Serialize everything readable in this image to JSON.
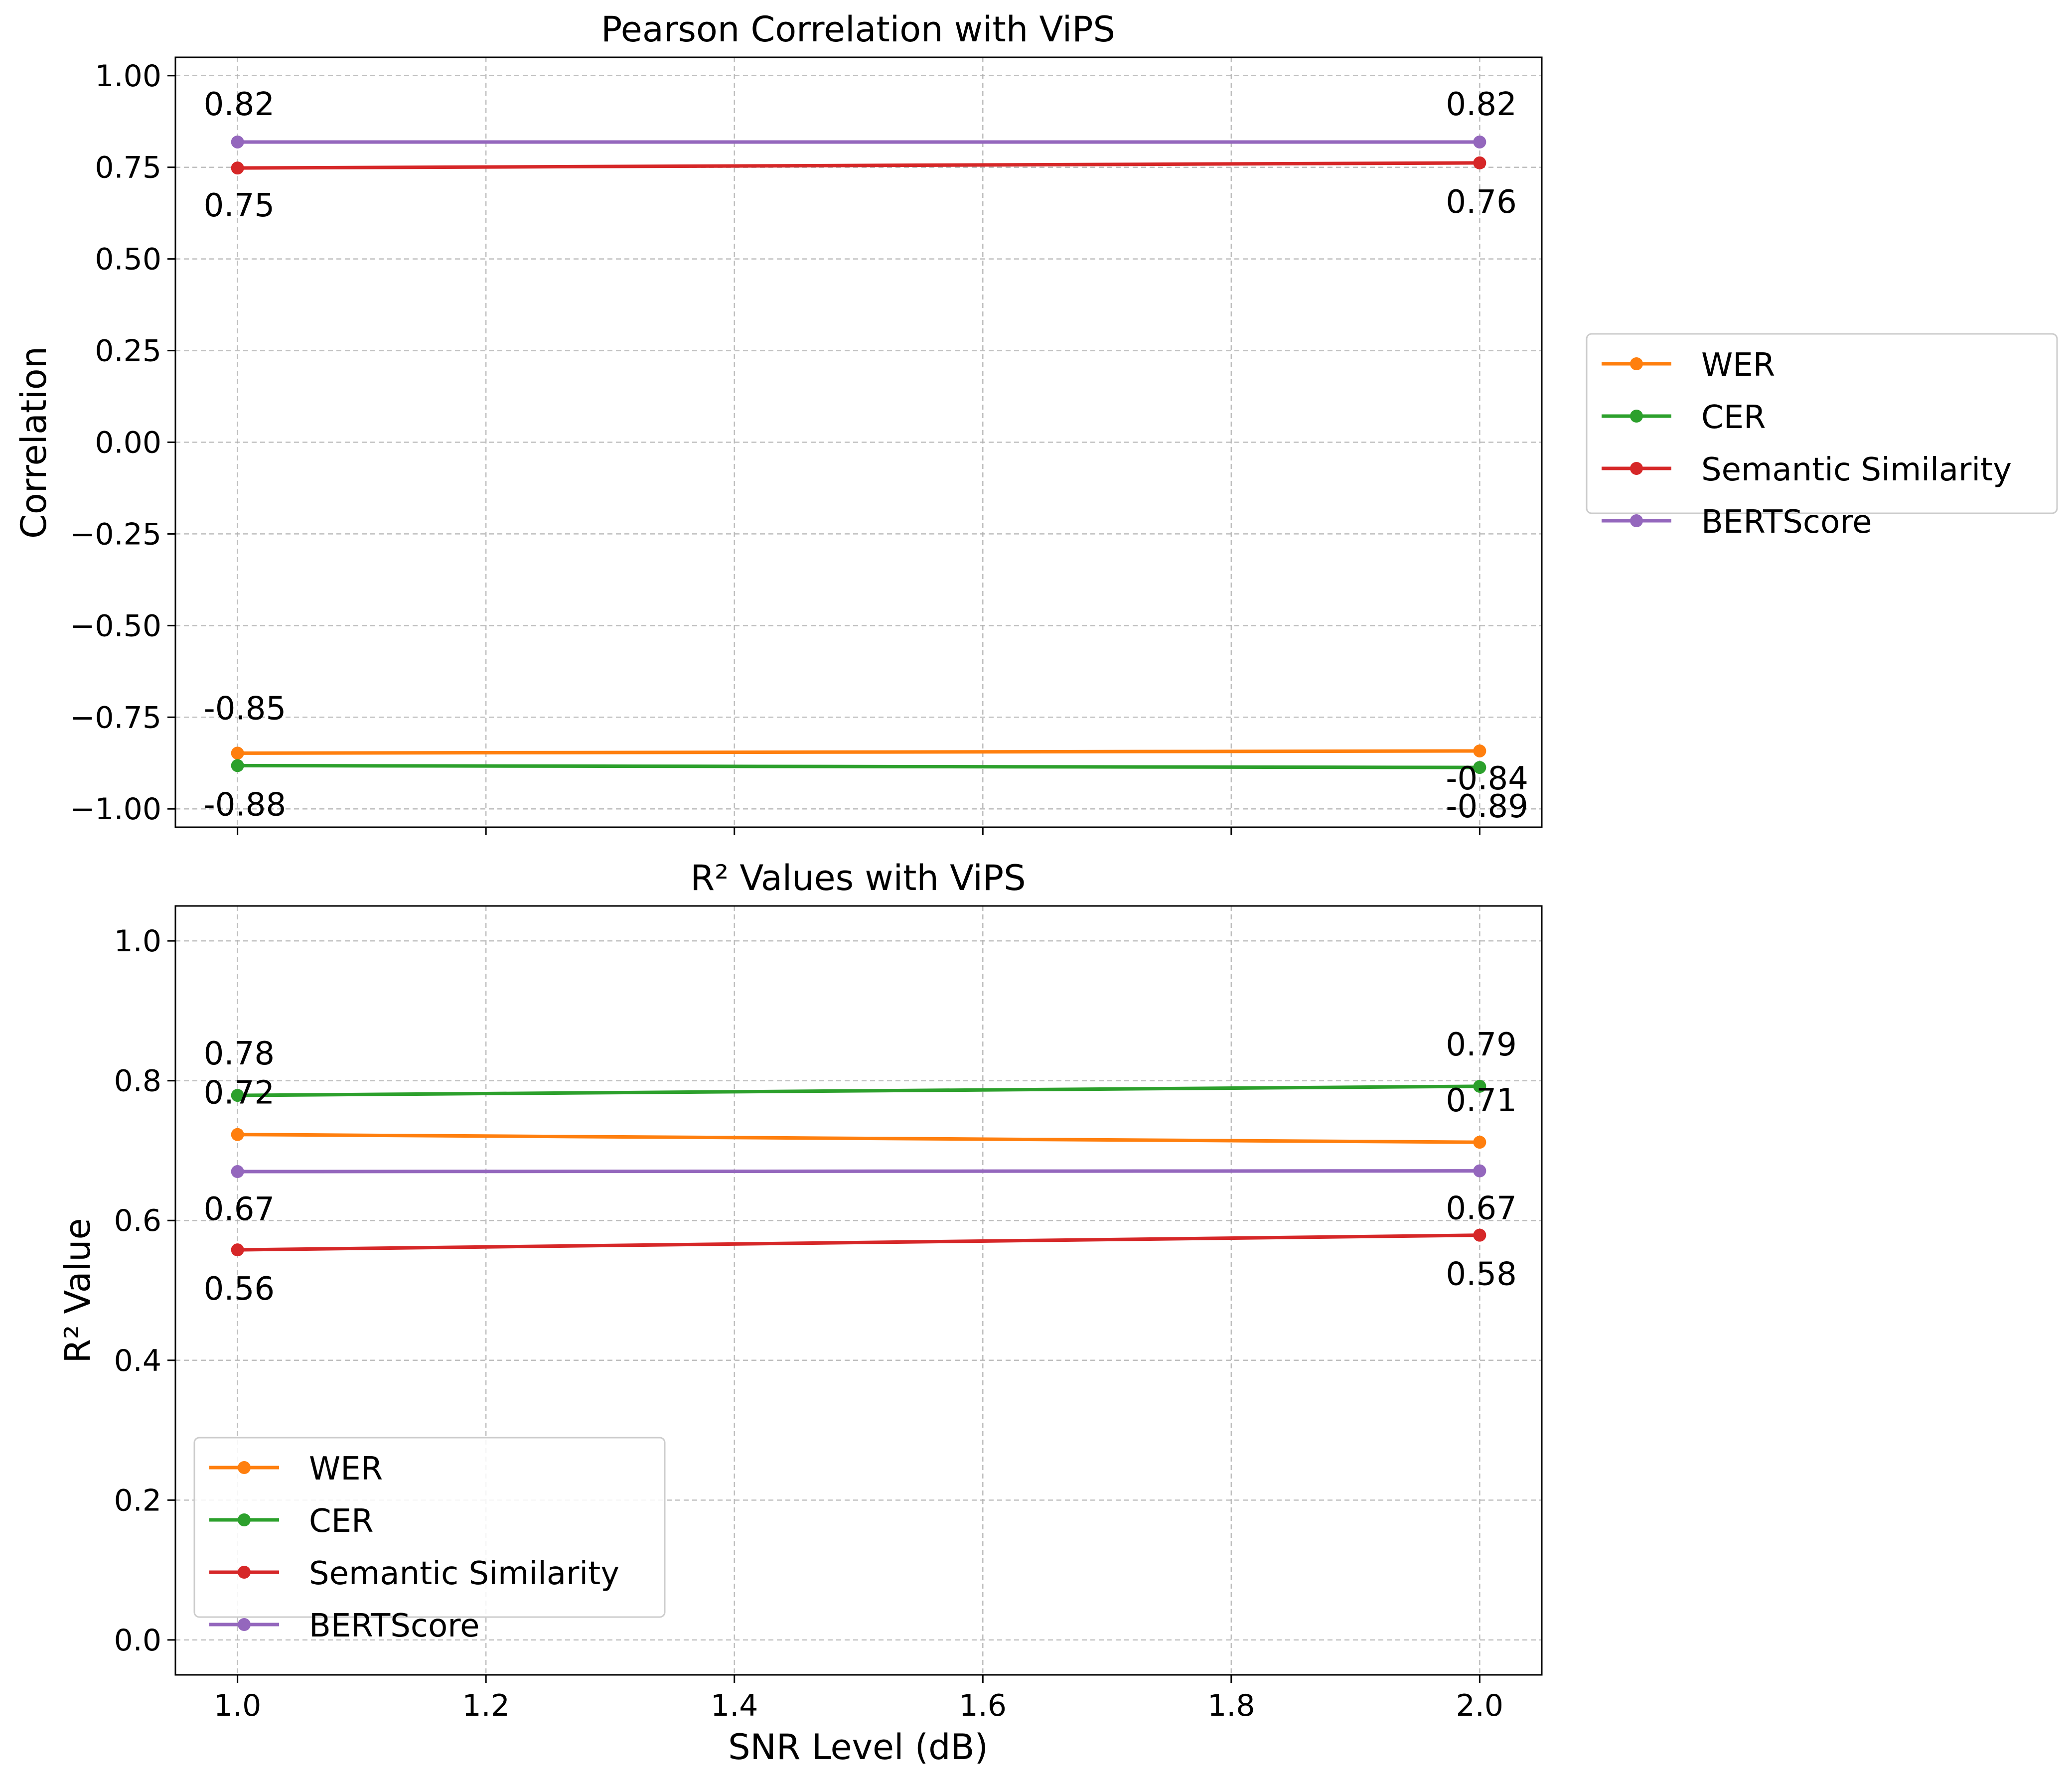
{
  "chart_data": [
    {
      "type": "line",
      "title": "Pearson Correlation with ViPS",
      "xlabel": "",
      "ylabel": "Correlation",
      "x": [
        1.0,
        2.0
      ],
      "xlim": [
        0.95,
        2.05
      ],
      "ylim": [
        -1.05,
        1.05
      ],
      "yticks": [
        "−1.00",
        "−0.75",
        "−0.50",
        "−0.25",
        "0.00",
        "0.25",
        "0.50",
        "0.75",
        "1.00"
      ],
      "ytick_values": [
        -1.0,
        -0.75,
        -0.5,
        -0.25,
        0.0,
        0.25,
        0.5,
        0.75,
        1.0
      ],
      "grid": true,
      "legend_placement": "outside-right",
      "series": [
        {
          "name": "WER",
          "color": "#ff7f0e",
          "values": [
            -0.848,
            -0.842
          ],
          "labels": [
            "-0.85",
            "-0.84"
          ]
        },
        {
          "name": "CER",
          "color": "#2ca02c",
          "values": [
            -0.882,
            -0.887
          ],
          "labels": [
            "-0.88",
            "-0.89"
          ]
        },
        {
          "name": "Semantic Similarity",
          "color": "#d62728",
          "values": [
            0.748,
            0.762
          ],
          "labels": [
            "0.75",
            "0.76"
          ]
        },
        {
          "name": "BERTScore",
          "color": "#9467bd",
          "values": [
            0.819,
            0.819
          ],
          "labels": [
            "0.82",
            "0.82"
          ]
        }
      ]
    },
    {
      "type": "line",
      "title": "R² Values with ViPS",
      "xlabel": "SNR Level (dB)",
      "ylabel": "R² Value",
      "x": [
        1.0,
        2.0
      ],
      "xlim": [
        0.95,
        2.05
      ],
      "xticks": [
        "1.0",
        "1.2",
        "1.4",
        "1.6",
        "1.8",
        "2.0"
      ],
      "xtick_values": [
        1.0,
        1.2,
        1.4,
        1.6,
        1.8,
        2.0
      ],
      "ylim": [
        -0.05,
        1.05
      ],
      "yticks": [
        "0.0",
        "0.2",
        "0.4",
        "0.6",
        "0.8",
        "1.0"
      ],
      "ytick_values": [
        0.0,
        0.2,
        0.4,
        0.6,
        0.8,
        1.0
      ],
      "grid": true,
      "legend_placement": "lower-left",
      "series": [
        {
          "name": "WER",
          "color": "#ff7f0e",
          "values": [
            0.723,
            0.712
          ],
          "labels": [
            "0.72",
            "0.71"
          ]
        },
        {
          "name": "CER",
          "color": "#2ca02c",
          "values": [
            0.779,
            0.792
          ],
          "labels": [
            "0.78",
            "0.79"
          ]
        },
        {
          "name": "Semantic Similarity",
          "color": "#d62728",
          "values": [
            0.558,
            0.579
          ],
          "labels": [
            "0.56",
            "0.58"
          ]
        },
        {
          "name": "BERTScore",
          "color": "#9467bd",
          "values": [
            0.67,
            0.671
          ],
          "labels": [
            "0.67",
            "0.67"
          ]
        }
      ]
    }
  ]
}
